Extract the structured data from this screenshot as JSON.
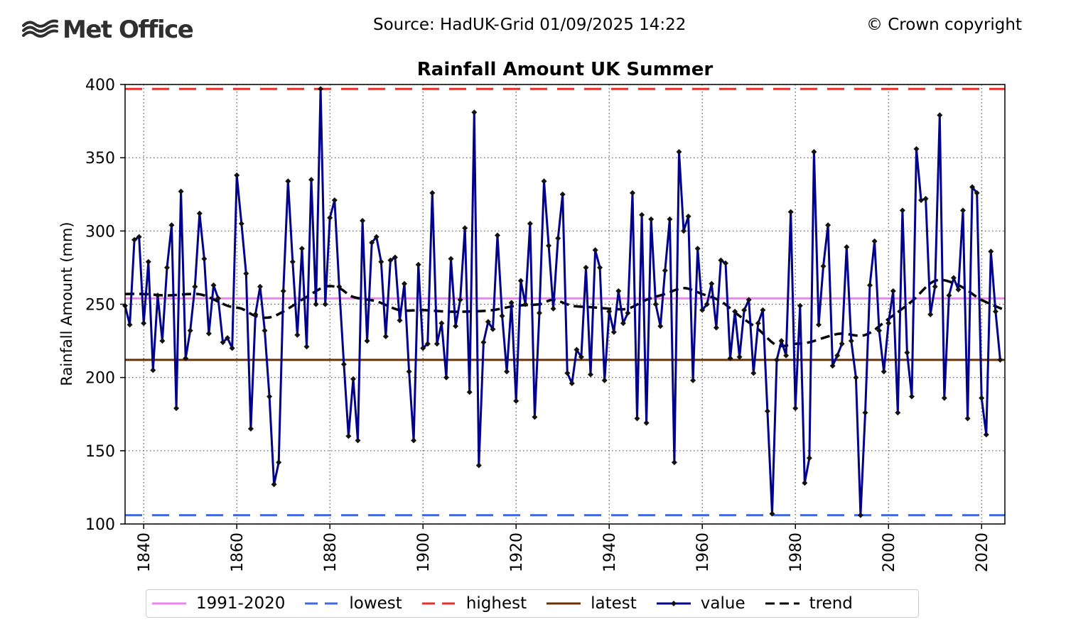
{
  "header": {
    "logo_text": "Met Office",
    "source": "Source: HadUK-Grid 01/09/2025 14:22",
    "copyright": "© Crown copyright"
  },
  "chart_data": {
    "type": "line",
    "title": "Rainfall Amount UK Summer",
    "ylabel": "Rainfall Amount (mm)",
    "xlabel": "",
    "xlim": [
      1836,
      2025
    ],
    "ylim": [
      100,
      400
    ],
    "xticks": [
      "1840",
      "1860",
      "1880",
      "1900",
      "1920",
      "1940",
      "1960",
      "1980",
      "2000",
      "2020"
    ],
    "yticks": [
      "100",
      "150",
      "200",
      "250",
      "300",
      "350",
      "400"
    ],
    "grid": true,
    "legend_position": "bottom",
    "reference_lines": [
      {
        "name": "1991-2020",
        "value": 254,
        "color": "#ee82ee",
        "style": "solid"
      },
      {
        "name": "lowest",
        "value": 106,
        "color": "#4169e1",
        "style": "dashed"
      },
      {
        "name": "highest",
        "value": 397,
        "color": "#e8302a",
        "style": "dashed"
      },
      {
        "name": "latest",
        "value": 212,
        "color": "#6b3100",
        "style": "solid"
      }
    ],
    "series": [
      {
        "name": "value",
        "color": "#00008b",
        "start_year": 1836,
        "values": [
          249,
          236,
          294,
          296,
          237,
          279,
          205,
          256,
          225,
          275,
          304,
          179,
          327,
          213,
          232,
          262,
          312,
          281,
          230,
          263,
          254,
          224,
          227,
          220,
          338,
          305,
          271,
          165,
          243,
          262,
          232,
          187,
          127,
          142,
          259,
          334,
          279,
          229,
          288,
          221,
          335,
          250,
          397,
          250,
          309,
          321,
          262,
          209,
          160,
          199,
          157,
          307,
          225,
          292,
          296,
          279,
          228,
          280,
          282,
          239,
          264,
          204,
          157,
          277,
          220,
          223,
          326,
          223,
          237,
          200,
          281,
          235,
          253,
          302,
          190,
          381,
          140,
          224,
          238,
          233,
          297,
          242,
          204,
          251,
          184,
          266,
          250,
          305,
          173,
          244,
          334,
          290,
          247,
          295,
          325,
          203,
          196,
          219,
          214,
          275,
          202,
          287,
          275,
          198,
          245,
          231,
          259,
          237,
          244,
          326,
          172,
          311,
          169,
          308,
          250,
          235,
          273,
          308,
          142,
          354,
          300,
          310,
          198,
          288,
          246,
          250,
          264,
          234,
          280,
          278,
          213,
          245,
          214,
          246,
          253,
          203,
          237,
          246,
          177,
          107,
          212,
          225,
          215,
          313,
          179,
          249,
          128,
          145,
          354,
          236,
          276,
          304,
          208,
          215,
          223,
          289,
          225,
          200,
          106,
          176,
          263,
          293,
          232,
          204,
          237,
          259,
          176,
          314,
          217,
          187,
          356,
          321,
          322,
          243,
          262,
          379,
          186,
          256,
          268,
          260,
          314,
          172,
          330,
          326,
          186,
          161,
          286,
          245,
          212
        ]
      },
      {
        "name": "trend",
        "color": "#000000",
        "style": "dashed",
        "knots": [
          [
            1836,
            257
          ],
          [
            1840,
            257
          ],
          [
            1845,
            256
          ],
          [
            1850,
            257
          ],
          [
            1853,
            256
          ],
          [
            1858,
            249
          ],
          [
            1861,
            247
          ],
          [
            1864,
            242
          ],
          [
            1867,
            241
          ],
          [
            1870,
            245
          ],
          [
            1875,
            255
          ],
          [
            1879,
            262
          ],
          [
            1882,
            261
          ],
          [
            1885,
            255
          ],
          [
            1890,
            252
          ],
          [
            1895,
            246
          ],
          [
            1900,
            246
          ],
          [
            1905,
            245
          ],
          [
            1910,
            245
          ],
          [
            1915,
            246
          ],
          [
            1920,
            249
          ],
          [
            1925,
            250
          ],
          [
            1928,
            253
          ],
          [
            1932,
            249
          ],
          [
            1936,
            248
          ],
          [
            1940,
            247
          ],
          [
            1944,
            247
          ],
          [
            1948,
            253
          ],
          [
            1952,
            257
          ],
          [
            1956,
            261
          ],
          [
            1960,
            257
          ],
          [
            1964,
            252
          ],
          [
            1968,
            242
          ],
          [
            1972,
            233
          ],
          [
            1976,
            222
          ],
          [
            1980,
            223
          ],
          [
            1983,
            224
          ],
          [
            1987,
            228
          ],
          [
            1990,
            230
          ],
          [
            1995,
            229
          ],
          [
            2000,
            240
          ],
          [
            2005,
            252
          ],
          [
            2010,
            266
          ],
          [
            2015,
            263
          ],
          [
            2020,
            253
          ],
          [
            2025,
            246
          ]
        ]
      }
    ]
  }
}
